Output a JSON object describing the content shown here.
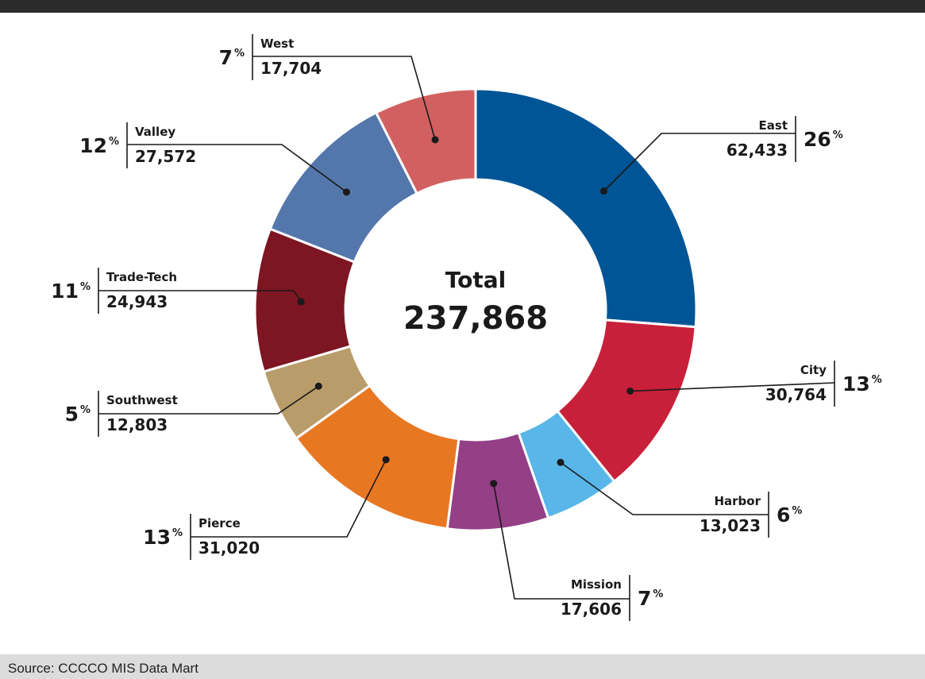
{
  "chart_data": {
    "type": "pie",
    "title": "",
    "center_label": {
      "title": "Total",
      "value": "237,868"
    },
    "percent_sign": "%",
    "series": [
      {
        "label": "East",
        "value": 62433,
        "value_label": "62,433",
        "percent": "26",
        "color": "#005596"
      },
      {
        "label": "City",
        "value": 30764,
        "value_label": "30,764",
        "percent": "13",
        "color": "#c8203a"
      },
      {
        "label": "Harbor",
        "value": 13023,
        "value_label": "13,023",
        "percent": "6",
        "color": "#58b6e8"
      },
      {
        "label": "Mission",
        "value": 17606,
        "value_label": "17,606",
        "percent": "7",
        "color": "#943f86"
      },
      {
        "label": "Pierce",
        "value": 31020,
        "value_label": "31,020",
        "percent": "13",
        "color": "#e87722"
      },
      {
        "label": "Southwest",
        "value": 12803,
        "value_label": "12,803",
        "percent": "5",
        "color": "#b89c6a"
      },
      {
        "label": "Trade-Tech",
        "value": 24943,
        "value_label": "24,943",
        "percent": "11",
        "color": "#7d1622"
      },
      {
        "label": "Valley",
        "value": 27572,
        "value_label": "27,572",
        "percent": "12",
        "color": "#5477ab"
      },
      {
        "label": "West",
        "value": 17704,
        "value_label": "17,704",
        "percent": "7",
        "color": "#d36060"
      }
    ]
  },
  "footer": {
    "source": "Source: CCCCO MIS Data Mart"
  }
}
